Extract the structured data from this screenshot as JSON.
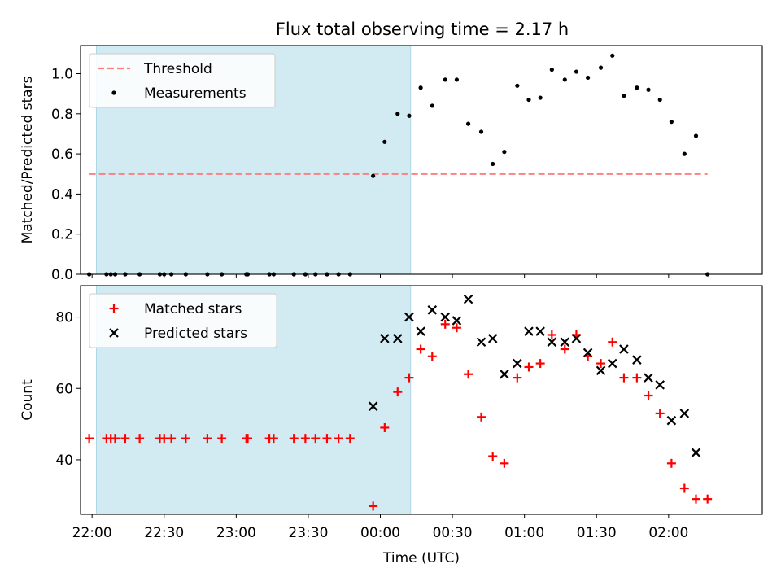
{
  "title": "Flux total observing time = 2.17 h",
  "colors": {
    "threshold": "#ff7f7f",
    "measurement": "#000000",
    "matched": "#ff0000",
    "predicted": "#000000",
    "observing_window": "#add8e6"
  },
  "chart_data": [
    {
      "type": "scatter",
      "panel": "top",
      "ylabel": "Matched/Predicted stars",
      "ylim": [
        0,
        1.14
      ],
      "yticks": [
        "0.0",
        "0.2",
        "0.4",
        "0.6",
        "0.8",
        "1.0"
      ],
      "ytick_values": [
        0,
        0.2,
        0.4,
        0.6,
        0.8,
        1.0
      ],
      "xlim": [
        -0.08,
        4.65
      ],
      "shaded_span": [
        0.03,
        2.21
      ],
      "threshold": {
        "name": "Threshold",
        "value": 0.5,
        "x": [
          -0.02,
          4.27
        ]
      },
      "legend": {
        "position": "upper-left",
        "entries": [
          "Threshold",
          "Measurements"
        ]
      },
      "series": [
        {
          "name": "Measurements",
          "x": [
            -0.02,
            0.1,
            0.13,
            0.16,
            0.23,
            0.33,
            0.47,
            0.5,
            0.55,
            0.65,
            0.8,
            0.9,
            1.07,
            1.08,
            1.23,
            1.26,
            1.4,
            1.48,
            1.55,
            1.63,
            1.71,
            1.79,
            1.95,
            2.03,
            2.12,
            2.2,
            2.28,
            2.36,
            2.45,
            2.53,
            2.61,
            2.7,
            2.78,
            2.86,
            2.95,
            3.03,
            3.11,
            3.19,
            3.28,
            3.36,
            3.44,
            3.53,
            3.61,
            3.69,
            3.78,
            3.86,
            3.94,
            4.02,
            4.11,
            4.19,
            4.27
          ],
          "y": [
            0,
            0,
            0,
            0,
            0,
            0,
            0,
            0,
            0,
            0,
            0,
            0,
            0,
            0,
            0,
            0,
            0,
            0,
            0,
            0,
            0,
            0,
            0.49,
            0.66,
            0.8,
            0.79,
            0.93,
            0.84,
            0.97,
            0.97,
            0.75,
            0.71,
            0.55,
            0.61,
            0.94,
            0.87,
            0.88,
            1.02,
            0.97,
            1.01,
            0.98,
            1.03,
            1.09,
            0.89,
            0.93,
            0.92,
            0.87,
            0.76,
            0.6,
            0.69,
            0
          ]
        }
      ]
    },
    {
      "type": "scatter",
      "panel": "bottom",
      "xlabel": "Time (UTC)",
      "ylabel": "Count",
      "ylim": [
        24.7,
        88.8
      ],
      "yticks": [
        "40",
        "60",
        "80"
      ],
      "ytick_values": [
        40,
        60,
        80
      ],
      "xlim": [
        -0.08,
        4.65
      ],
      "xticks": [
        "22:00",
        "22:30",
        "23:00",
        "23:30",
        "00:00",
        "00:30",
        "01:00",
        "01:30",
        "02:00"
      ],
      "xtick_values": [
        0,
        0.5,
        1,
        1.5,
        2,
        2.5,
        3,
        3.5,
        4
      ],
      "shaded_span": [
        0.03,
        2.21
      ],
      "legend": {
        "position": "upper-left",
        "entries": [
          "Matched stars",
          "Predicted stars"
        ]
      },
      "series": [
        {
          "name": "Matched stars",
          "marker": "plus",
          "x": [
            -0.02,
            0.1,
            0.13,
            0.16,
            0.23,
            0.33,
            0.47,
            0.5,
            0.55,
            0.65,
            0.8,
            0.9,
            1.07,
            1.08,
            1.23,
            1.26,
            1.4,
            1.48,
            1.55,
            1.63,
            1.71,
            1.79,
            1.95,
            2.03,
            2.12,
            2.2,
            2.28,
            2.36,
            2.45,
            2.53,
            2.61,
            2.7,
            2.78,
            2.86,
            2.95,
            3.03,
            3.11,
            3.19,
            3.28,
            3.36,
            3.44,
            3.53,
            3.61,
            3.69,
            3.78,
            3.86,
            3.94,
            4.02,
            4.11,
            4.19,
            4.27
          ],
          "y": [
            46,
            46,
            46,
            46,
            46,
            46,
            46,
            46,
            46,
            46,
            46,
            46,
            46,
            46,
            46,
            46,
            46,
            46,
            46,
            46,
            46,
            46,
            27,
            49,
            59,
            63,
            71,
            69,
            78,
            77,
            64,
            52,
            41,
            39,
            63,
            66,
            67,
            75,
            71,
            75,
            69,
            67,
            73,
            63,
            63,
            58,
            53,
            39,
            32,
            29,
            29
          ]
        },
        {
          "name": "Predicted stars",
          "marker": "x",
          "x": [
            1.95,
            2.03,
            2.12,
            2.2,
            2.28,
            2.36,
            2.45,
            2.53,
            2.61,
            2.7,
            2.78,
            2.86,
            2.95,
            3.03,
            3.11,
            3.19,
            3.28,
            3.36,
            3.44,
            3.53,
            3.61,
            3.69,
            3.78,
            3.86,
            3.94,
            4.02,
            4.11,
            4.19
          ],
          "y": [
            55,
            74,
            74,
            80,
            76,
            82,
            80,
            79,
            85,
            73,
            74,
            64,
            67,
            76,
            76,
            73,
            73,
            74,
            70,
            65,
            67,
            71,
            68,
            63,
            61,
            51,
            53,
            42
          ]
        }
      ]
    }
  ]
}
